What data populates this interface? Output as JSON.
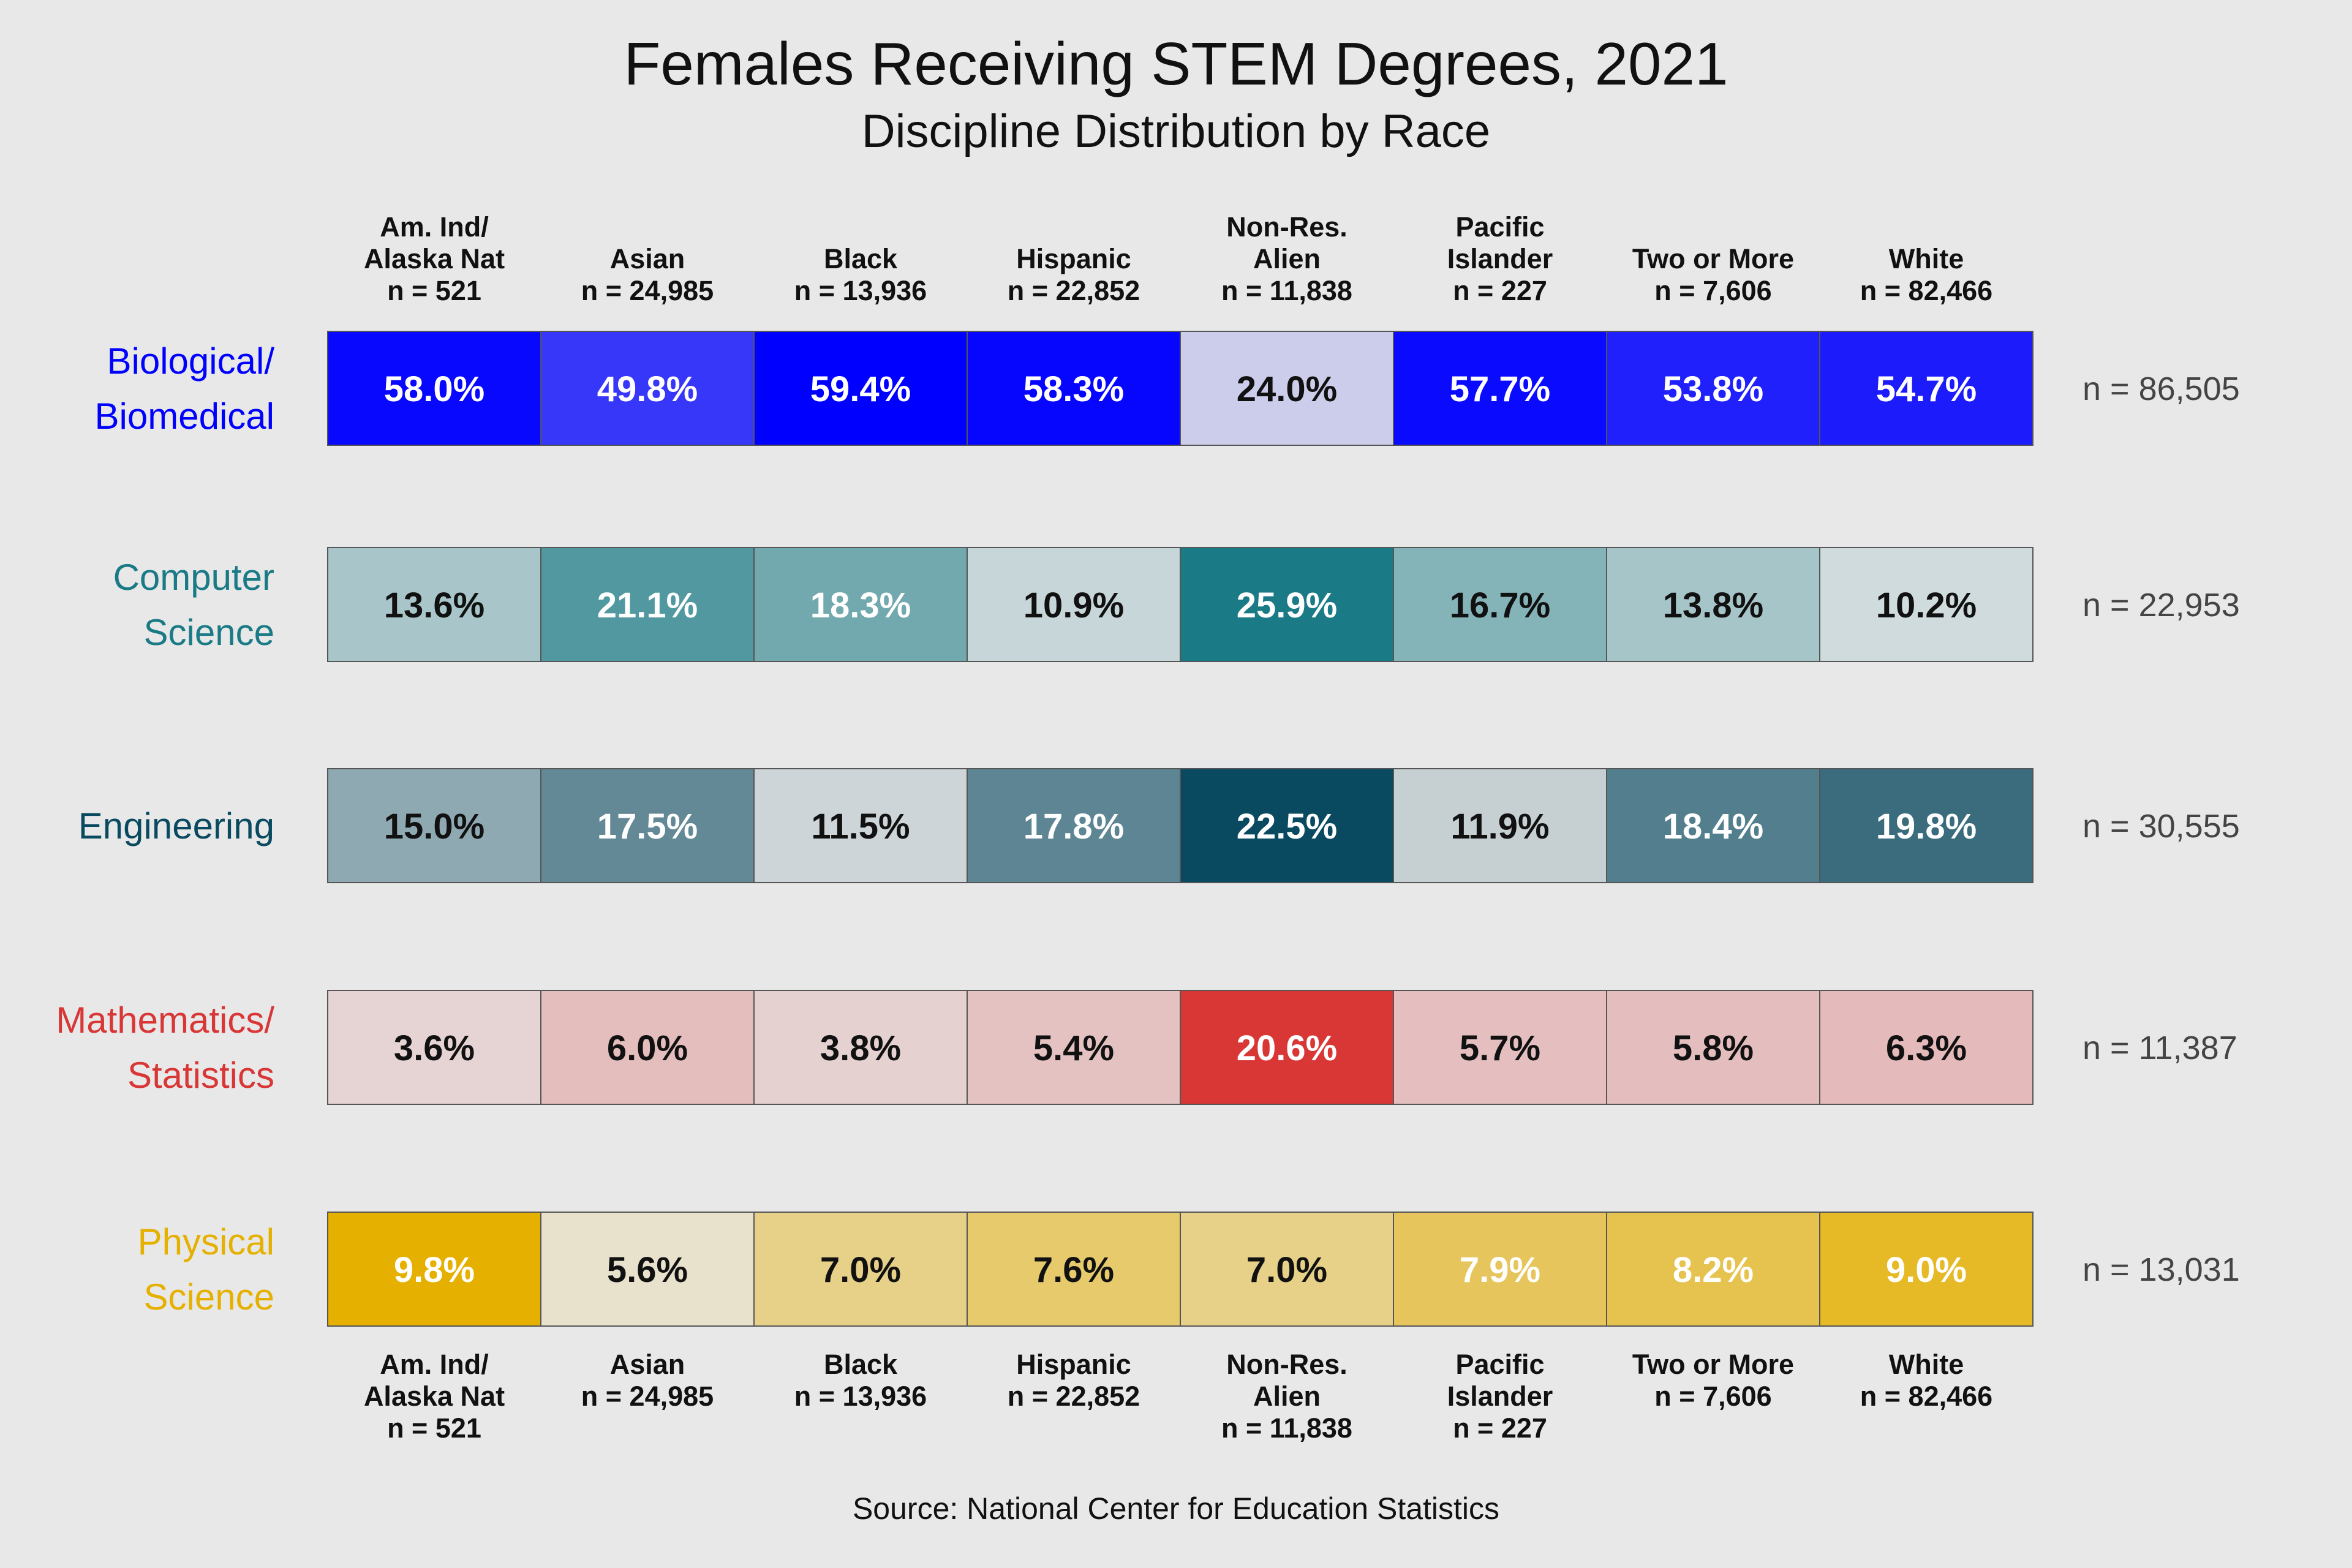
{
  "chart_data": {
    "type": "heatmap",
    "title": "Females Receiving STEM Degrees, 2021",
    "subtitle": "Discipline Distribution by Race",
    "source": "Source: National Center for Education Statistics",
    "columns": [
      {
        "label_lines": [
          "Am. Ind/",
          "Alaska Nat",
          "n =  521"
        ]
      },
      {
        "label_lines": [
          "Asian",
          "n =  24,985"
        ]
      },
      {
        "label_lines": [
          "Black",
          "n =  13,936"
        ]
      },
      {
        "label_lines": [
          "Hispanic",
          "n =  22,852"
        ]
      },
      {
        "label_lines": [
          "Non-Res.",
          "Alien",
          "n =  11,838"
        ]
      },
      {
        "label_lines": [
          "Pacific",
          "Islander",
          "n =  227"
        ]
      },
      {
        "label_lines": [
          "Two or More",
          "n =  7,606"
        ]
      },
      {
        "label_lines": [
          "White",
          "n =  82,466"
        ]
      }
    ],
    "rows": [
      {
        "label_lines": [
          "Biological/",
          "Biomedical"
        ],
        "n_label": "n = 86,505",
        "color": "#0000ff",
        "values": [
          58.0,
          49.8,
          59.4,
          58.3,
          24.0,
          57.7,
          53.8,
          54.7
        ],
        "value_labels": [
          "58.0%",
          "49.8%",
          "59.4%",
          "58.3%",
          "24.0%",
          "57.7%",
          "53.8%",
          "54.7%"
        ]
      },
      {
        "label_lines": [
          "Computer",
          "Science"
        ],
        "n_label": "n = 22,953",
        "color": "#1a7a85",
        "values": [
          13.6,
          21.1,
          18.3,
          10.9,
          25.9,
          16.7,
          13.8,
          10.2
        ],
        "value_labels": [
          "13.6%",
          "21.1%",
          "18.3%",
          "10.9%",
          "25.9%",
          "16.7%",
          "13.8%",
          "10.2%"
        ]
      },
      {
        "label_lines": [
          "Engineering"
        ],
        "n_label": "n = 30,555",
        "color": "#0a4a60",
        "values": [
          15.0,
          17.5,
          11.5,
          17.8,
          22.5,
          11.9,
          18.4,
          19.8
        ],
        "value_labels": [
          "15.0%",
          "17.5%",
          "11.5%",
          "17.8%",
          "22.5%",
          "11.9%",
          "18.4%",
          "19.8%"
        ]
      },
      {
        "label_lines": [
          "Mathematics/",
          "Statistics"
        ],
        "n_label": "n = 11,387",
        "color": "#d93636",
        "values": [
          3.6,
          6.0,
          3.8,
          5.4,
          20.6,
          5.7,
          5.8,
          6.3
        ],
        "value_labels": [
          "3.6%",
          "6.0%",
          "3.8%",
          "5.4%",
          "20.6%",
          "5.7%",
          "5.8%",
          "6.3%"
        ]
      },
      {
        "label_lines": [
          "Physical",
          "Science"
        ],
        "n_label": "n = 13,031",
        "color": "#e5b000",
        "values": [
          9.8,
          5.6,
          7.0,
          7.6,
          7.0,
          7.9,
          8.2,
          9.0
        ],
        "value_labels": [
          "9.8%",
          "5.6%",
          "7.0%",
          "7.6%",
          "7.0%",
          "7.9%",
          "8.2%",
          "9.0%"
        ]
      }
    ]
  }
}
